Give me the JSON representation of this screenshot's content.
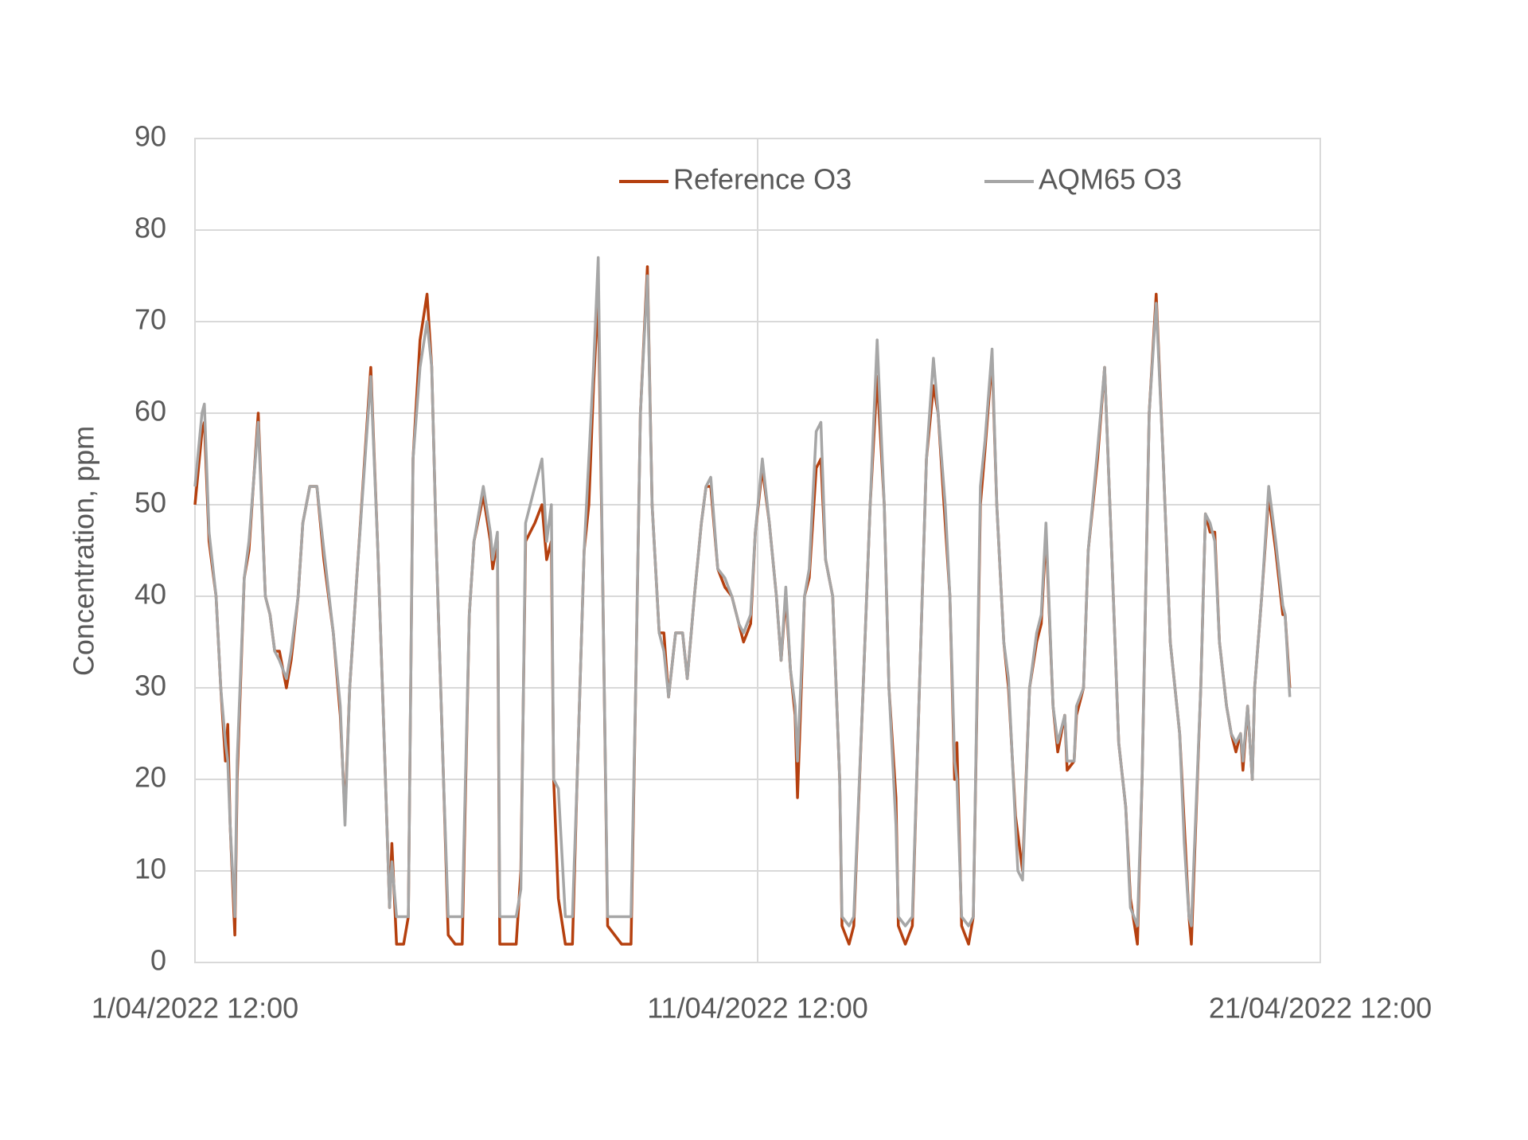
{
  "chart_data": {
    "type": "line",
    "y_label": "Concentration, ppm",
    "ylim": [
      0,
      90
    ],
    "yticks": [
      0,
      10,
      20,
      30,
      40,
      50,
      60,
      70,
      80,
      90
    ],
    "xlim": [
      "2022-04-01T12:00",
      "2022-04-21T12:00"
    ],
    "xticks": [
      {
        "value": "2022-04-01T12:00",
        "label": "1/04/2022 12:00"
      },
      {
        "value": "2022-04-11T12:00",
        "label": "11/04/2022 12:00"
      },
      {
        "value": "2022-04-21T12:00",
        "label": "21/04/2022 12:00"
      }
    ],
    "grid": true,
    "legend": "top",
    "x": [
      "2022-04-01T12:00",
      "2022-04-01T15:00",
      "2022-04-01T16:00",
      "2022-04-01T18:00",
      "2022-04-01T21:00",
      "2022-04-01T23:00",
      "2022-04-02T01:00",
      "2022-04-02T02:00",
      "2022-04-02T03:00",
      "2022-04-02T05:00",
      "2022-04-02T06:00",
      "2022-04-02T09:00",
      "2022-04-02T11:00",
      "2022-04-02T15:00",
      "2022-04-02T18:00",
      "2022-04-02T20:00",
      "2022-04-02T22:00",
      "2022-04-03T00:00",
      "2022-04-03T03:00",
      "2022-04-03T05:00",
      "2022-04-03T08:00",
      "2022-04-03T10:00",
      "2022-04-03T13:00",
      "2022-04-03T16:00",
      "2022-04-03T19:00",
      "2022-04-03T23:00",
      "2022-04-04T02:00",
      "2022-04-04T04:00",
      "2022-04-04T06:00",
      "2022-04-04T09:00",
      "2022-04-04T15:00",
      "2022-04-04T18:00",
      "2022-04-04T21:00",
      "2022-04-04T23:00",
      "2022-04-05T00:00",
      "2022-04-05T02:00",
      "2022-04-05T05:00",
      "2022-04-05T07:00",
      "2022-04-05T09:00",
      "2022-04-05T12:00",
      "2022-04-05T15:00",
      "2022-04-05T17:00",
      "2022-04-05T19:00",
      "2022-04-05T22:00",
      "2022-04-06T00:00",
      "2022-04-06T03:00",
      "2022-04-06T06:00",
      "2022-04-06T09:00",
      "2022-04-06T11:00",
      "2022-04-06T15:00",
      "2022-04-06T18:00",
      "2022-04-06T19:00",
      "2022-04-06T21:00",
      "2022-04-06T22:00",
      "2022-04-07T01:00",
      "2022-04-07T05:00",
      "2022-04-07T07:00",
      "2022-04-07T09:00",
      "2022-04-07T13:00",
      "2022-04-07T16:00",
      "2022-04-07T18:00",
      "2022-04-07T20:00",
      "2022-04-07T21:00",
      "2022-04-07T23:00",
      "2022-04-08T02:00",
      "2022-04-08T05:00",
      "2022-04-08T07:00",
      "2022-04-08T10:00",
      "2022-04-08T12:00",
      "2022-04-08T14:00",
      "2022-04-08T16:00",
      "2022-04-08T18:00",
      "2022-04-08T20:00",
      "2022-04-08T23:00",
      "2022-04-09T02:00",
      "2022-04-09T06:00",
      "2022-04-09T08:00",
      "2022-04-09T10:00",
      "2022-04-09T13:00",
      "2022-04-09T15:00",
      "2022-04-09T18:00",
      "2022-04-09T20:00",
      "2022-04-09T22:00",
      "2022-04-10T01:00",
      "2022-04-10T04:00",
      "2022-04-10T06:00",
      "2022-04-10T09:00",
      "2022-04-10T12:00",
      "2022-04-10T14:00",
      "2022-04-10T16:00",
      "2022-04-10T19:00",
      "2022-04-10T22:00",
      "2022-04-11T01:00",
      "2022-04-11T04:00",
      "2022-04-11T06:00",
      "2022-04-11T09:00",
      "2022-04-11T11:00",
      "2022-04-11T14:00",
      "2022-04-11T17:00",
      "2022-04-11T20:00",
      "2022-04-11T22:00",
      "2022-04-12T00:00",
      "2022-04-12T02:00",
      "2022-04-12T04:00",
      "2022-04-12T05:00",
      "2022-04-12T08:00",
      "2022-04-12T10:00",
      "2022-04-12T13:00",
      "2022-04-12T15:00",
      "2022-04-12T17:00",
      "2022-04-12T20:00",
      "2022-04-12T23:00",
      "2022-04-13T00:00",
      "2022-04-13T03:00",
      "2022-04-13T05:00",
      "2022-04-13T09:00",
      "2022-04-13T12:00",
      "2022-04-13T15:00",
      "2022-04-13T18:00",
      "2022-04-13T20:00",
      "2022-04-13T23:00",
      "2022-04-14T00:00",
      "2022-04-14T03:00",
      "2022-04-14T06:00",
      "2022-04-14T09:00",
      "2022-04-14T12:00",
      "2022-04-14T15:00",
      "2022-04-14T17:00",
      "2022-04-14T20:00",
      "2022-04-14T22:00",
      "2022-04-15T00:00",
      "2022-04-15T01:00",
      "2022-04-15T03:00",
      "2022-04-15T06:00",
      "2022-04-15T08:00",
      "2022-04-15T11:00",
      "2022-04-15T13:00",
      "2022-04-15T16:00",
      "2022-04-15T18:00",
      "2022-04-15T21:00",
      "2022-04-15T23:00",
      "2022-04-16T02:00",
      "2022-04-16T03:00",
      "2022-04-16T05:00",
      "2022-04-16T08:00",
      "2022-04-16T11:00",
      "2022-04-16T13:00",
      "2022-04-16T15:00",
      "2022-04-16T18:00",
      "2022-04-16T20:00",
      "2022-04-16T23:00",
      "2022-04-17T00:00",
      "2022-04-17T03:00",
      "2022-04-17T04:00",
      "2022-04-17T07:00",
      "2022-04-17T09:00",
      "2022-04-17T13:00",
      "2022-04-17T16:00",
      "2022-04-17T19:00",
      "2022-04-17T22:00",
      "2022-04-18T01:00",
      "2022-04-18T03:00",
      "2022-04-18T06:00",
      "2022-04-18T08:00",
      "2022-04-18T11:00",
      "2022-04-18T14:00",
      "2022-04-18T17:00",
      "2022-04-18T20:00",
      "2022-04-19T00:00",
      "2022-04-19T02:00",
      "2022-04-19T04:00",
      "2022-04-19T05:00",
      "2022-04-19T09:00",
      "2022-04-19T11:00",
      "2022-04-19T13:00",
      "2022-04-19T15:00",
      "2022-04-19T17:00",
      "2022-04-19T20:00",
      "2022-04-19T22:00",
      "2022-04-20T00:00",
      "2022-04-20T02:00",
      "2022-04-20T03:00",
      "2022-04-20T05:00",
      "2022-04-20T07:00",
      "2022-04-20T08:00",
      "2022-04-20T11:00",
      "2022-04-20T14:00",
      "2022-04-20T17:00",
      "2022-04-20T20:00",
      "2022-04-20T21:00",
      "2022-04-20T23:00"
    ],
    "series": [
      {
        "name": "Reference O3",
        "color": "#b5400f",
        "values": [
          50,
          58,
          59,
          46,
          40,
          30,
          22,
          26,
          15,
          3,
          20,
          42,
          45,
          60,
          40,
          38,
          34,
          34,
          30,
          33,
          40,
          48,
          52,
          52,
          44,
          36,
          27,
          16,
          30,
          42,
          65,
          45,
          22,
          6,
          13,
          2,
          2,
          5,
          55,
          68,
          73,
          65,
          45,
          20,
          3,
          2,
          2,
          38,
          46,
          51,
          46,
          43,
          46,
          2,
          2,
          2,
          10,
          46,
          48,
          50,
          44,
          46,
          20,
          7,
          2,
          2,
          20,
          45,
          50,
          63,
          73,
          40,
          4,
          3,
          2,
          2,
          30,
          60,
          76,
          50,
          36,
          36,
          29,
          36,
          36,
          31,
          40,
          48,
          52,
          52,
          43,
          41,
          40,
          37,
          35,
          37,
          47,
          54,
          48,
          40,
          33,
          40,
          32,
          27,
          18,
          40,
          42,
          54,
          55,
          44,
          40,
          20,
          4,
          2,
          4,
          30,
          50,
          64,
          50,
          30,
          18,
          4,
          2,
          4,
          30,
          55,
          63,
          60,
          48,
          40,
          20,
          24,
          4,
          2,
          5,
          50,
          56,
          66,
          50,
          35,
          30,
          16,
          14,
          10,
          30,
          35,
          37,
          47,
          28,
          23,
          27,
          21,
          22,
          27,
          30,
          45,
          55,
          65,
          45,
          24,
          17,
          7,
          2,
          20,
          60,
          73,
          55,
          35,
          25,
          15,
          5,
          2,
          30,
          49,
          47,
          47,
          35,
          28,
          25,
          23,
          25,
          21,
          28,
          20,
          30,
          40,
          51,
          45,
          38,
          38,
          30
        ]
      },
      {
        "name": "AQM65 O3",
        "color": "#a6a6a6",
        "values": [
          52,
          60,
          61,
          47,
          40,
          30,
          24,
          22,
          15,
          5,
          22,
          42,
          46,
          59,
          40,
          38,
          34,
          33,
          31,
          34,
          40,
          48,
          52,
          52,
          45,
          36,
          28,
          15,
          30,
          42,
          64,
          45,
          22,
          6,
          11,
          5,
          5,
          5,
          55,
          65,
          70,
          65,
          45,
          20,
          5,
          5,
          5,
          38,
          46,
          52,
          47,
          44,
          47,
          5,
          5,
          5,
          8,
          48,
          52,
          55,
          46,
          50,
          20,
          19,
          5,
          5,
          20,
          45,
          55,
          65,
          77,
          40,
          5,
          5,
          5,
          5,
          30,
          60,
          75,
          50,
          36,
          34,
          29,
          36,
          36,
          31,
          40,
          48,
          52,
          53,
          43,
          42,
          40,
          37,
          36,
          38,
          47,
          55,
          48,
          40,
          33,
          41,
          32,
          28,
          22,
          40,
          43,
          58,
          59,
          44,
          40,
          20,
          5,
          4,
          5,
          30,
          50,
          68,
          50,
          30,
          15,
          5,
          4,
          5,
          30,
          55,
          66,
          60,
          50,
          40,
          22,
          20,
          5,
          4,
          5,
          52,
          57,
          67,
          50,
          35,
          31,
          15,
          10,
          9,
          30,
          36,
          38,
          48,
          28,
          24,
          27,
          22,
          22,
          28,
          30,
          45,
          56,
          65,
          45,
          24,
          17,
          6,
          4,
          20,
          60,
          72,
          55,
          35,
          25,
          13,
          5,
          4,
          30,
          49,
          48,
          46,
          35,
          28,
          25,
          24,
          25,
          22,
          28,
          20,
          30,
          40,
          52,
          46,
          39,
          38,
          29
        ]
      }
    ]
  }
}
